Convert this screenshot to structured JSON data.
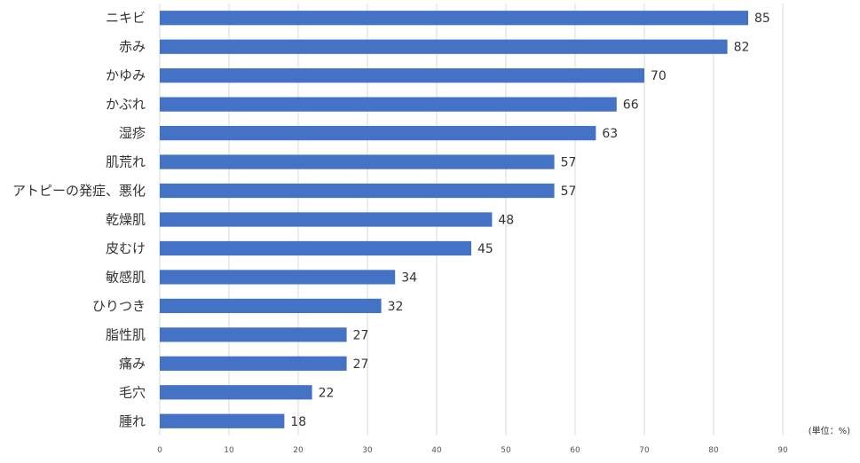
{
  "chart_data": {
    "type": "bar",
    "orientation": "horizontal",
    "categories": [
      "ニキビ",
      "赤み",
      "かゆみ",
      "かぶれ",
      "湿疹",
      "肌荒れ",
      "アトピーの発症、悪化",
      "乾燥肌",
      "皮むけ",
      "敏感肌",
      "ひりつき",
      "脂性肌",
      "痛み",
      "毛穴",
      "腫れ"
    ],
    "values": [
      85,
      82,
      70,
      66,
      63,
      57,
      57,
      48,
      45,
      34,
      32,
      27,
      27,
      22,
      18
    ],
    "xlim": [
      0,
      90
    ],
    "xticks": [
      "0",
      "10",
      "20",
      "30",
      "40",
      "50",
      "60",
      "70",
      "80",
      "90"
    ],
    "unit_label": "(単位：%)",
    "grid": true,
    "bar_color": "#4472C4",
    "title": "",
    "xlabel": "",
    "ylabel": ""
  }
}
